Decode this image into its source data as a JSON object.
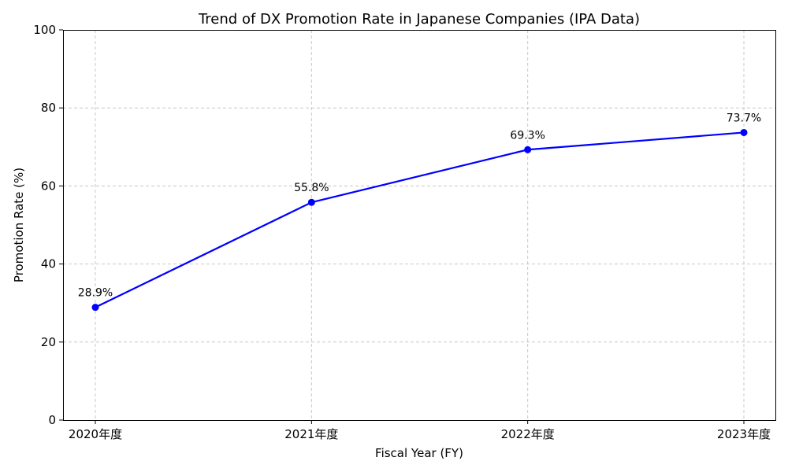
{
  "chart_data": {
    "type": "line",
    "title": "Trend of DX Promotion Rate in Japanese Companies (IPA Data)",
    "xlabel": "Fiscal Year (FY)",
    "ylabel": "Promotion Rate (%)",
    "categories": [
      "2020年度",
      "2021年度",
      "2022年度",
      "2023年度"
    ],
    "values": [
      28.9,
      55.8,
      69.3,
      73.7
    ],
    "data_labels": [
      "28.9%",
      "55.8%",
      "69.3%",
      "73.7%"
    ],
    "ylim": [
      0,
      100
    ],
    "yticks": [
      "0",
      "20",
      "40",
      "60",
      "80",
      "100"
    ],
    "grid": true,
    "color": "#0000ff"
  }
}
